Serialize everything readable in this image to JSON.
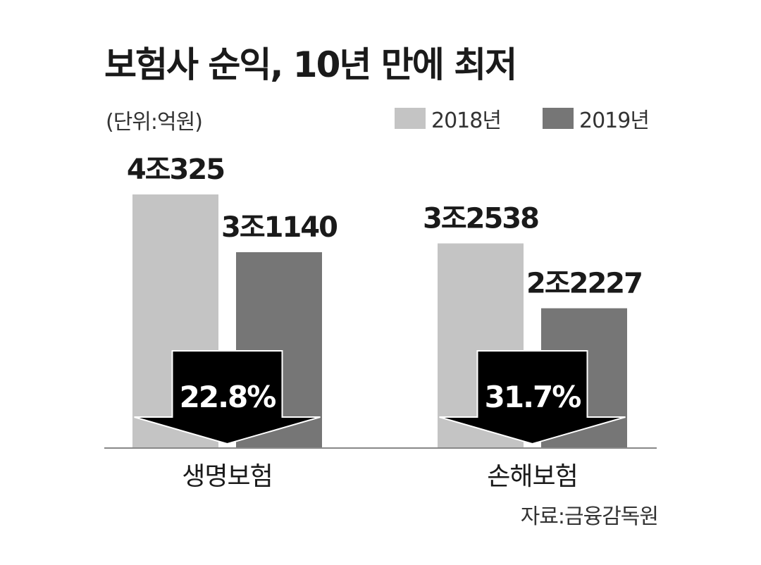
{
  "chart_data": {
    "type": "bar",
    "title": "보험사 순익, 10년 만에 최저",
    "unit": "(단위:억원)",
    "source": "자료:금융감독원",
    "categories": [
      "생명보험",
      "손해보험"
    ],
    "series": [
      {
        "name": "2018년",
        "color": "#c4c4c4",
        "values": [
          40325,
          32538
        ],
        "labels": [
          "4조325",
          "3조2538"
        ]
      },
      {
        "name": "2019년",
        "color": "#767676",
        "values": [
          31140,
          22227
        ],
        "labels": [
          "3조1140",
          "2조2227"
        ]
      }
    ],
    "change_labels": [
      "22.8%",
      "31.7%"
    ],
    "arrow_color": "#000000",
    "ylim": [
      0,
      40325
    ]
  }
}
